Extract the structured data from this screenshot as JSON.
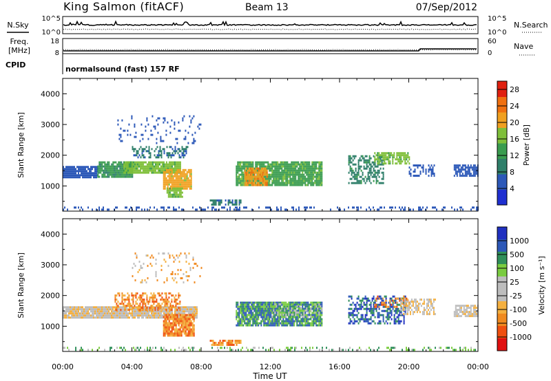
{
  "header": {
    "station": "King Salmon (fitACF)",
    "beam": "Beam 13",
    "date": "07/Sep/2012"
  },
  "small_panels": {
    "nsky_label": "N.Sky",
    "nsearch_label": "N.Search",
    "nsky_ticks": [
      "10^5",
      "10^0"
    ],
    "nsearch_ticks": [
      "10^5",
      "10^0"
    ],
    "freq_label_1": "Freq.",
    "freq_label_2": "[MHz]",
    "freq_ticks": [
      "18",
      "8"
    ],
    "nave_label": "Nave",
    "nave_ticks": [
      "60",
      "0"
    ],
    "cpid_label": "CPID",
    "cpid_text": "normalsound (fast) 157 RF"
  },
  "colors": {
    "power_scale": [
      "#1f2fd0",
      "#2c58b8",
      "#2f7f6a",
      "#3a9c4f",
      "#7fbf3a",
      "#f0a020",
      "#f07010",
      "#e02010"
    ],
    "velocity_scale": [
      "#e01010",
      "#f05010",
      "#f08a20",
      "#f4b040",
      "#bdbdbd",
      "#bdbdbd",
      "#7acc40",
      "#2f8f5a",
      "#2c58b8",
      "#2030c0"
    ]
  },
  "chart_data": [
    {
      "type": "heatmap",
      "panel": "power",
      "ylabel": "Slant Range [km]",
      "y_ticks": [
        1000,
        2000,
        3000,
        4000
      ],
      "ylim": [
        180,
        4500
      ],
      "colorbar_label": "Power [dB]",
      "colorbar_ticks": [
        4,
        8,
        12,
        16,
        20,
        24,
        28
      ],
      "colorbar_range": [
        0,
        30
      ],
      "regions": [
        {
          "t0": 0.0,
          "t1": 2.0,
          "r0": 1300,
          "r1": 1650,
          "level": 6,
          "density": 0.9
        },
        {
          "t0": 2.0,
          "t1": 4.0,
          "r0": 1300,
          "r1": 1800,
          "level": 12,
          "density": 0.9
        },
        {
          "t0": 3.5,
          "t1": 6.8,
          "r0": 1400,
          "r1": 1800,
          "level": 16,
          "density": 0.95
        },
        {
          "t0": 5.8,
          "t1": 7.4,
          "r0": 900,
          "r1": 1550,
          "level": 20,
          "density": 0.9
        },
        {
          "t0": 6.0,
          "t1": 6.9,
          "r0": 650,
          "r1": 950,
          "level": 16,
          "density": 0.8
        },
        {
          "t0": 4.0,
          "t1": 7.2,
          "r0": 1900,
          "r1": 2300,
          "level": 8,
          "density": 0.45
        },
        {
          "t0": 3.0,
          "t1": 8.0,
          "r0": 2400,
          "r1": 3300,
          "level": 6,
          "density": 0.12
        },
        {
          "t0": 10.0,
          "t1": 15.0,
          "r0": 1000,
          "r1": 1800,
          "level": 14,
          "density": 0.9
        },
        {
          "t0": 10.5,
          "t1": 11.8,
          "r0": 1050,
          "r1": 1600,
          "level": 22,
          "density": 0.85
        },
        {
          "t0": 8.5,
          "t1": 10.3,
          "r0": 380,
          "r1": 560,
          "level": 8,
          "density": 0.6
        },
        {
          "t0": 16.5,
          "t1": 18.5,
          "r0": 1100,
          "r1": 2000,
          "level": 10,
          "density": 0.55
        },
        {
          "t0": 18.0,
          "t1": 20.0,
          "r0": 1700,
          "r1": 2100,
          "level": 16,
          "density": 0.7
        },
        {
          "t0": 20.0,
          "t1": 21.5,
          "r0": 1300,
          "r1": 1700,
          "level": 6,
          "density": 0.4
        },
        {
          "t0": 22.6,
          "t1": 24.0,
          "r0": 1350,
          "r1": 1700,
          "level": 6,
          "density": 0.85
        },
        {
          "t0": 0.0,
          "t1": 24.0,
          "r0": 200,
          "r1": 330,
          "level": 6,
          "density": 0.25
        }
      ]
    },
    {
      "type": "heatmap",
      "panel": "velocity",
      "ylabel": "Slant Range [km]",
      "xlabel": "Time UT",
      "x_ticks": [
        "00:00",
        "04:00",
        "08:00",
        "12:00",
        "16:00",
        "20:00",
        "00:00"
      ],
      "xlim": [
        0,
        24
      ],
      "y_ticks": [
        1000,
        2000,
        3000,
        4000
      ],
      "ylim": [
        180,
        4500
      ],
      "colorbar_label": "Velocity [m s⁻¹]",
      "colorbar_ticks": [
        "1000",
        "500",
        "100",
        "25",
        "-25",
        "-100",
        "-500",
        "-1000"
      ],
      "regions": [
        {
          "t0": 0.0,
          "t1": 7.8,
          "r0": 1300,
          "r1": 1650,
          "level": 4,
          "density": 0.95
        },
        {
          "t0": 3.0,
          "t1": 6.8,
          "r0": 1550,
          "r1": 2100,
          "level": 2,
          "density": 0.5
        },
        {
          "t0": 5.8,
          "t1": 7.6,
          "r0": 700,
          "r1": 1400,
          "level": 2,
          "density": 0.85
        },
        {
          "t0": 4.0,
          "t1": 8.0,
          "r0": 2400,
          "r1": 3400,
          "level": 3,
          "density": 0.12
        },
        {
          "t0": 8.5,
          "t1": 10.3,
          "r0": 380,
          "r1": 560,
          "level": 2,
          "density": 0.7
        },
        {
          "t0": 10.0,
          "t1": 15.0,
          "r0": 1000,
          "r1": 1800,
          "level": 7,
          "density": 0.9
        },
        {
          "t0": 12.0,
          "t1": 15.0,
          "r0": 1300,
          "r1": 1750,
          "level": 5,
          "density": 0.3
        },
        {
          "t0": 16.5,
          "t1": 19.8,
          "r0": 1100,
          "r1": 2000,
          "level": 8,
          "density": 0.55
        },
        {
          "t0": 18.0,
          "t1": 20.0,
          "r0": 1600,
          "r1": 2000,
          "level": 2,
          "density": 0.35
        },
        {
          "t0": 19.5,
          "t1": 21.5,
          "r0": 1400,
          "r1": 1900,
          "level": 4,
          "density": 0.5
        },
        {
          "t0": 22.6,
          "t1": 24.0,
          "r0": 1350,
          "r1": 1700,
          "level": 4,
          "density": 0.85
        },
        {
          "t0": 0.0,
          "t1": 24.0,
          "r0": 200,
          "r1": 330,
          "level": 6,
          "density": 0.25
        }
      ]
    }
  ]
}
